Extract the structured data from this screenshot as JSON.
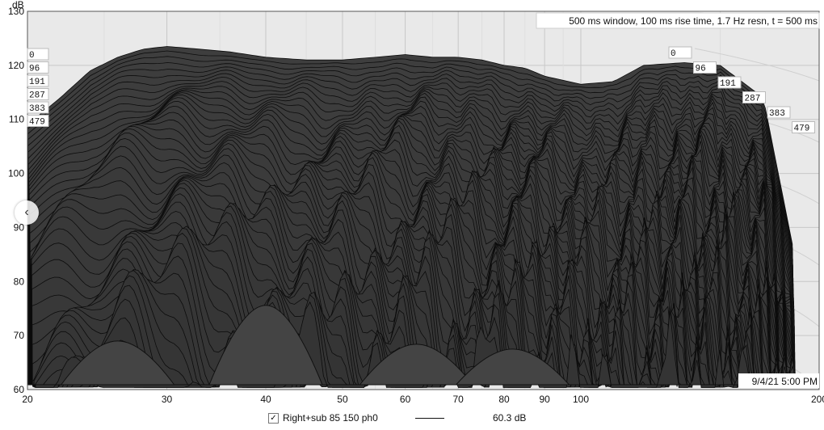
{
  "chart_data": {
    "type": "waterfall",
    "title": "",
    "info": "500 ms window, 100 ms rise time,  1.7 Hz resn, t = 500 ms",
    "y_unit": "dB",
    "ylim": [
      60,
      130
    ],
    "y_ticks": [
      "60",
      "70",
      "80",
      "90",
      "100",
      "110",
      "120",
      "130"
    ],
    "x_scale": "log",
    "xlim": [
      20,
      200
    ],
    "x_ticks": [
      "20",
      "30",
      "40",
      "50",
      "60",
      "70",
      "80",
      "90",
      "100",
      "200"
    ],
    "time_slices_ms": [
      "0",
      "96",
      "191",
      "287",
      "383",
      "479"
    ],
    "timestamp": "9/4/21 5:00 PM",
    "grid": true,
    "series": [
      {
        "name": "Right+sub 85 150 ph0",
        "legend_value": "60.3 dB",
        "checked": "✓",
        "front_slice_dB": {
          "x": [
            20,
            22,
            24,
            26,
            28,
            30,
            33,
            36,
            40,
            45,
            50,
            55,
            60,
            65,
            70,
            75,
            80,
            85,
            90,
            100,
            110,
            120,
            135,
            150,
            170,
            200
          ],
          "y": [
            109,
            114,
            119,
            121.5,
            123,
            123.5,
            123,
            122.5,
            121.5,
            121,
            121,
            121.5,
            122,
            121.5,
            121.5,
            121,
            120,
            119.5,
            118,
            116.5,
            117,
            120,
            120.5,
            120,
            114,
            62
          ]
        }
      }
    ]
  }
}
